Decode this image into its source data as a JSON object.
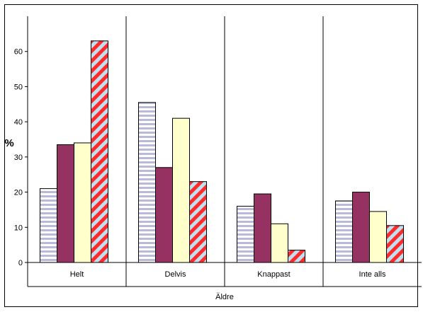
{
  "chart_data": {
    "type": "bar",
    "ylabel": "%",
    "xlabel": "Äldre",
    "ylim": [
      0,
      70
    ],
    "yticks": [
      0,
      10,
      20,
      30,
      40,
      50,
      60
    ],
    "categories": [
      "Helt",
      "Delvis",
      "Knappast",
      "Inte alls"
    ],
    "series": [
      {
        "values": [
          21,
          45.5,
          16,
          17.5
        ],
        "fill": "#ffffff",
        "pattern": "horizontal-stripes",
        "pattern_color": "#b9b9d9"
      },
      {
        "values": [
          33.5,
          27,
          19.5,
          20
        ],
        "fill": "#963262",
        "pattern": "solid"
      },
      {
        "values": [
          34,
          41,
          11,
          14.5
        ],
        "fill": "#ffffcc",
        "pattern": "solid"
      },
      {
        "values": [
          63,
          23,
          3.5,
          10.5
        ],
        "fill": "#bfe0ef",
        "pattern": "diagonal-stripes",
        "pattern_color": "#ff2a2a"
      }
    ]
  }
}
